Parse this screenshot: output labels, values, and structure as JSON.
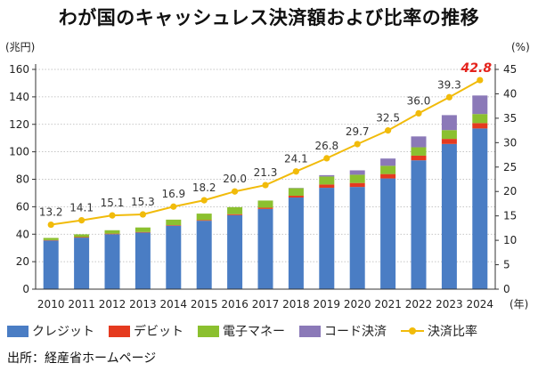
{
  "title": "わが国のキャッシュレス決済額および比率の推移",
  "source": "出所：経産省ホームページ",
  "chart_data": {
    "type": "bar",
    "stacked": true,
    "categories": [
      "2010",
      "2011",
      "2012",
      "2013",
      "2014",
      "2015",
      "2016",
      "2017",
      "2018",
      "2019",
      "2020",
      "2021",
      "2022",
      "2023",
      "2024"
    ],
    "x_unit": "(年)",
    "y_left_label": "(兆円)",
    "y_right_label": "(%)",
    "y_left_range": [
      0,
      160
    ],
    "y_left_ticks": [
      0,
      20,
      40,
      60,
      80,
      100,
      120,
      140,
      160
    ],
    "y_right_range": [
      0,
      45
    ],
    "y_right_ticks": [
      0,
      5,
      10,
      15,
      20,
      25,
      30,
      35,
      40,
      45
    ],
    "grid": true,
    "legend_position": "bottom",
    "series": [
      {
        "name": "クレジット",
        "color": "#4a7dc4",
        "axis": "left",
        "values": [
          35.4,
          37.5,
          40.0,
          41.2,
          46.2,
          49.8,
          53.9,
          58.4,
          66.7,
          73.8,
          74.4,
          80.6,
          93.8,
          105.7,
          117.0
        ]
      },
      {
        "name": "デビット",
        "color": "#e53a1f",
        "axis": "left",
        "values": [
          0.3,
          0.4,
          0.4,
          0.4,
          0.4,
          0.5,
          0.7,
          0.9,
          1.3,
          2.4,
          2.9,
          3.2,
          3.4,
          3.7,
          3.9
        ]
      },
      {
        "name": "電子マネー",
        "color": "#8bc02f",
        "axis": "left",
        "values": [
          1.6,
          2.0,
          2.5,
          3.3,
          4.0,
          4.7,
          5.1,
          5.2,
          5.5,
          5.8,
          6.0,
          6.0,
          6.1,
          6.4,
          6.6
        ]
      },
      {
        "name": "コード決済",
        "color": "#8b79b8",
        "axis": "left",
        "values": [
          0,
          0,
          0,
          0,
          0,
          0,
          0,
          0,
          0.2,
          1.0,
          3.2,
          5.3,
          7.9,
          10.9,
          13.5
        ]
      }
    ],
    "line": {
      "name": "決済比率",
      "color": "#f1bb0a",
      "axis": "right",
      "values": [
        13.2,
        14.1,
        15.1,
        15.3,
        16.9,
        18.2,
        20.0,
        21.3,
        24.1,
        26.8,
        29.7,
        32.5,
        36.0,
        39.3,
        42.8
      ],
      "highlight_color": "#e4231c"
    }
  }
}
